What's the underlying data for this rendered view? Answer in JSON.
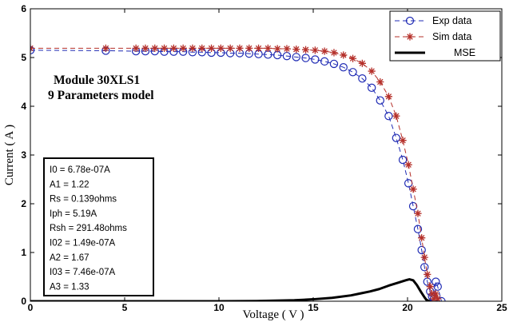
{
  "chart_data": {
    "type": "line",
    "xlabel": "Voltage ( V )",
    "ylabel": "Current ( A )",
    "xlim": [
      0,
      25
    ],
    "ylim": [
      0,
      6
    ],
    "xticks": [
      "0",
      "5",
      "10",
      "15",
      "20",
      "25"
    ],
    "yticks": [
      "0",
      "1",
      "2",
      "3",
      "4",
      "5",
      "6"
    ],
    "legend_position": "top-right",
    "grid": false,
    "annotation_title": [
      "Module 30XLS1",
      "9 Parameters model"
    ],
    "parameters": [
      "I0 = 6.78e-07A",
      "A1 = 1.22",
      "Rs = 0.139ohms",
      "Iph = 5.19A",
      "Rsh = 291.48ohms",
      "I02 = 1.49e-07A",
      "A2 = 1.67",
      "I03 = 7.46e-07A",
      "A3 = 1.33"
    ],
    "series": [
      {
        "name": "Exp data",
        "style": "dashed-circle",
        "color": "#1f2bb4",
        "x": [
          0,
          4,
          5.6,
          6.1,
          6.6,
          7.1,
          7.6,
          8.1,
          8.6,
          9.1,
          9.6,
          10.1,
          10.6,
          11.1,
          11.6,
          12.1,
          12.6,
          13.1,
          13.6,
          14.1,
          14.6,
          15.1,
          15.6,
          16.1,
          16.6,
          17.1,
          17.6,
          18.1,
          18.55,
          19.0,
          19.4,
          19.75,
          20.05,
          20.3,
          20.55,
          20.75,
          20.9,
          21.05,
          21.2,
          21.3,
          21.4,
          21.5,
          21.6,
          21.8
        ],
        "y": [
          5.15,
          5.14,
          5.13,
          5.13,
          5.13,
          5.12,
          5.12,
          5.12,
          5.11,
          5.11,
          5.1,
          5.1,
          5.09,
          5.09,
          5.08,
          5.07,
          5.06,
          5.05,
          5.03,
          5.01,
          4.99,
          4.96,
          4.92,
          4.87,
          4.8,
          4.7,
          4.57,
          4.38,
          4.12,
          3.8,
          3.35,
          2.9,
          2.42,
          1.95,
          1.48,
          1.05,
          0.7,
          0.4,
          0.2,
          0.1,
          0.05,
          0.4,
          0.3,
          0.0
        ]
      },
      {
        "name": "Sim data",
        "style": "dashed-star",
        "color": "#b5302a",
        "x": [
          0,
          4,
          5.6,
          6.1,
          6.6,
          7.1,
          7.6,
          8.1,
          8.6,
          9.1,
          9.6,
          10.1,
          10.6,
          11.1,
          11.6,
          12.1,
          12.6,
          13.1,
          13.6,
          14.1,
          14.6,
          15.1,
          15.6,
          16.1,
          16.6,
          17.1,
          17.6,
          18.1,
          18.55,
          19.0,
          19.4,
          19.75,
          20.05,
          20.3,
          20.55,
          20.75,
          20.9,
          21.05,
          21.2,
          21.3,
          21.4,
          21.5,
          21.6
        ],
        "y": [
          5.19,
          5.19,
          5.19,
          5.19,
          5.19,
          5.19,
          5.19,
          5.19,
          5.19,
          5.19,
          5.19,
          5.19,
          5.19,
          5.19,
          5.19,
          5.19,
          5.19,
          5.18,
          5.18,
          5.17,
          5.16,
          5.15,
          5.13,
          5.1,
          5.05,
          4.98,
          4.88,
          4.72,
          4.5,
          4.2,
          3.8,
          3.3,
          2.8,
          2.3,
          1.8,
          1.3,
          0.9,
          0.55,
          0.3,
          0.15,
          0.05,
          0.15,
          0.05
        ]
      },
      {
        "name": "MSE",
        "style": "solid-thick",
        "color": "#000000",
        "x": [
          0,
          5,
          10,
          12,
          14,
          15,
          16,
          17,
          17.5,
          18,
          18.5,
          19,
          19.5,
          19.9,
          20.1,
          20.3,
          20.5,
          20.7,
          20.9,
          21.0,
          21.1,
          21.2
        ],
        "y": [
          0,
          0,
          0,
          0.005,
          0.02,
          0.04,
          0.07,
          0.12,
          0.16,
          0.2,
          0.25,
          0.32,
          0.38,
          0.43,
          0.45,
          0.43,
          0.33,
          0.2,
          0.08,
          0.03,
          0.01,
          0
        ]
      }
    ]
  }
}
